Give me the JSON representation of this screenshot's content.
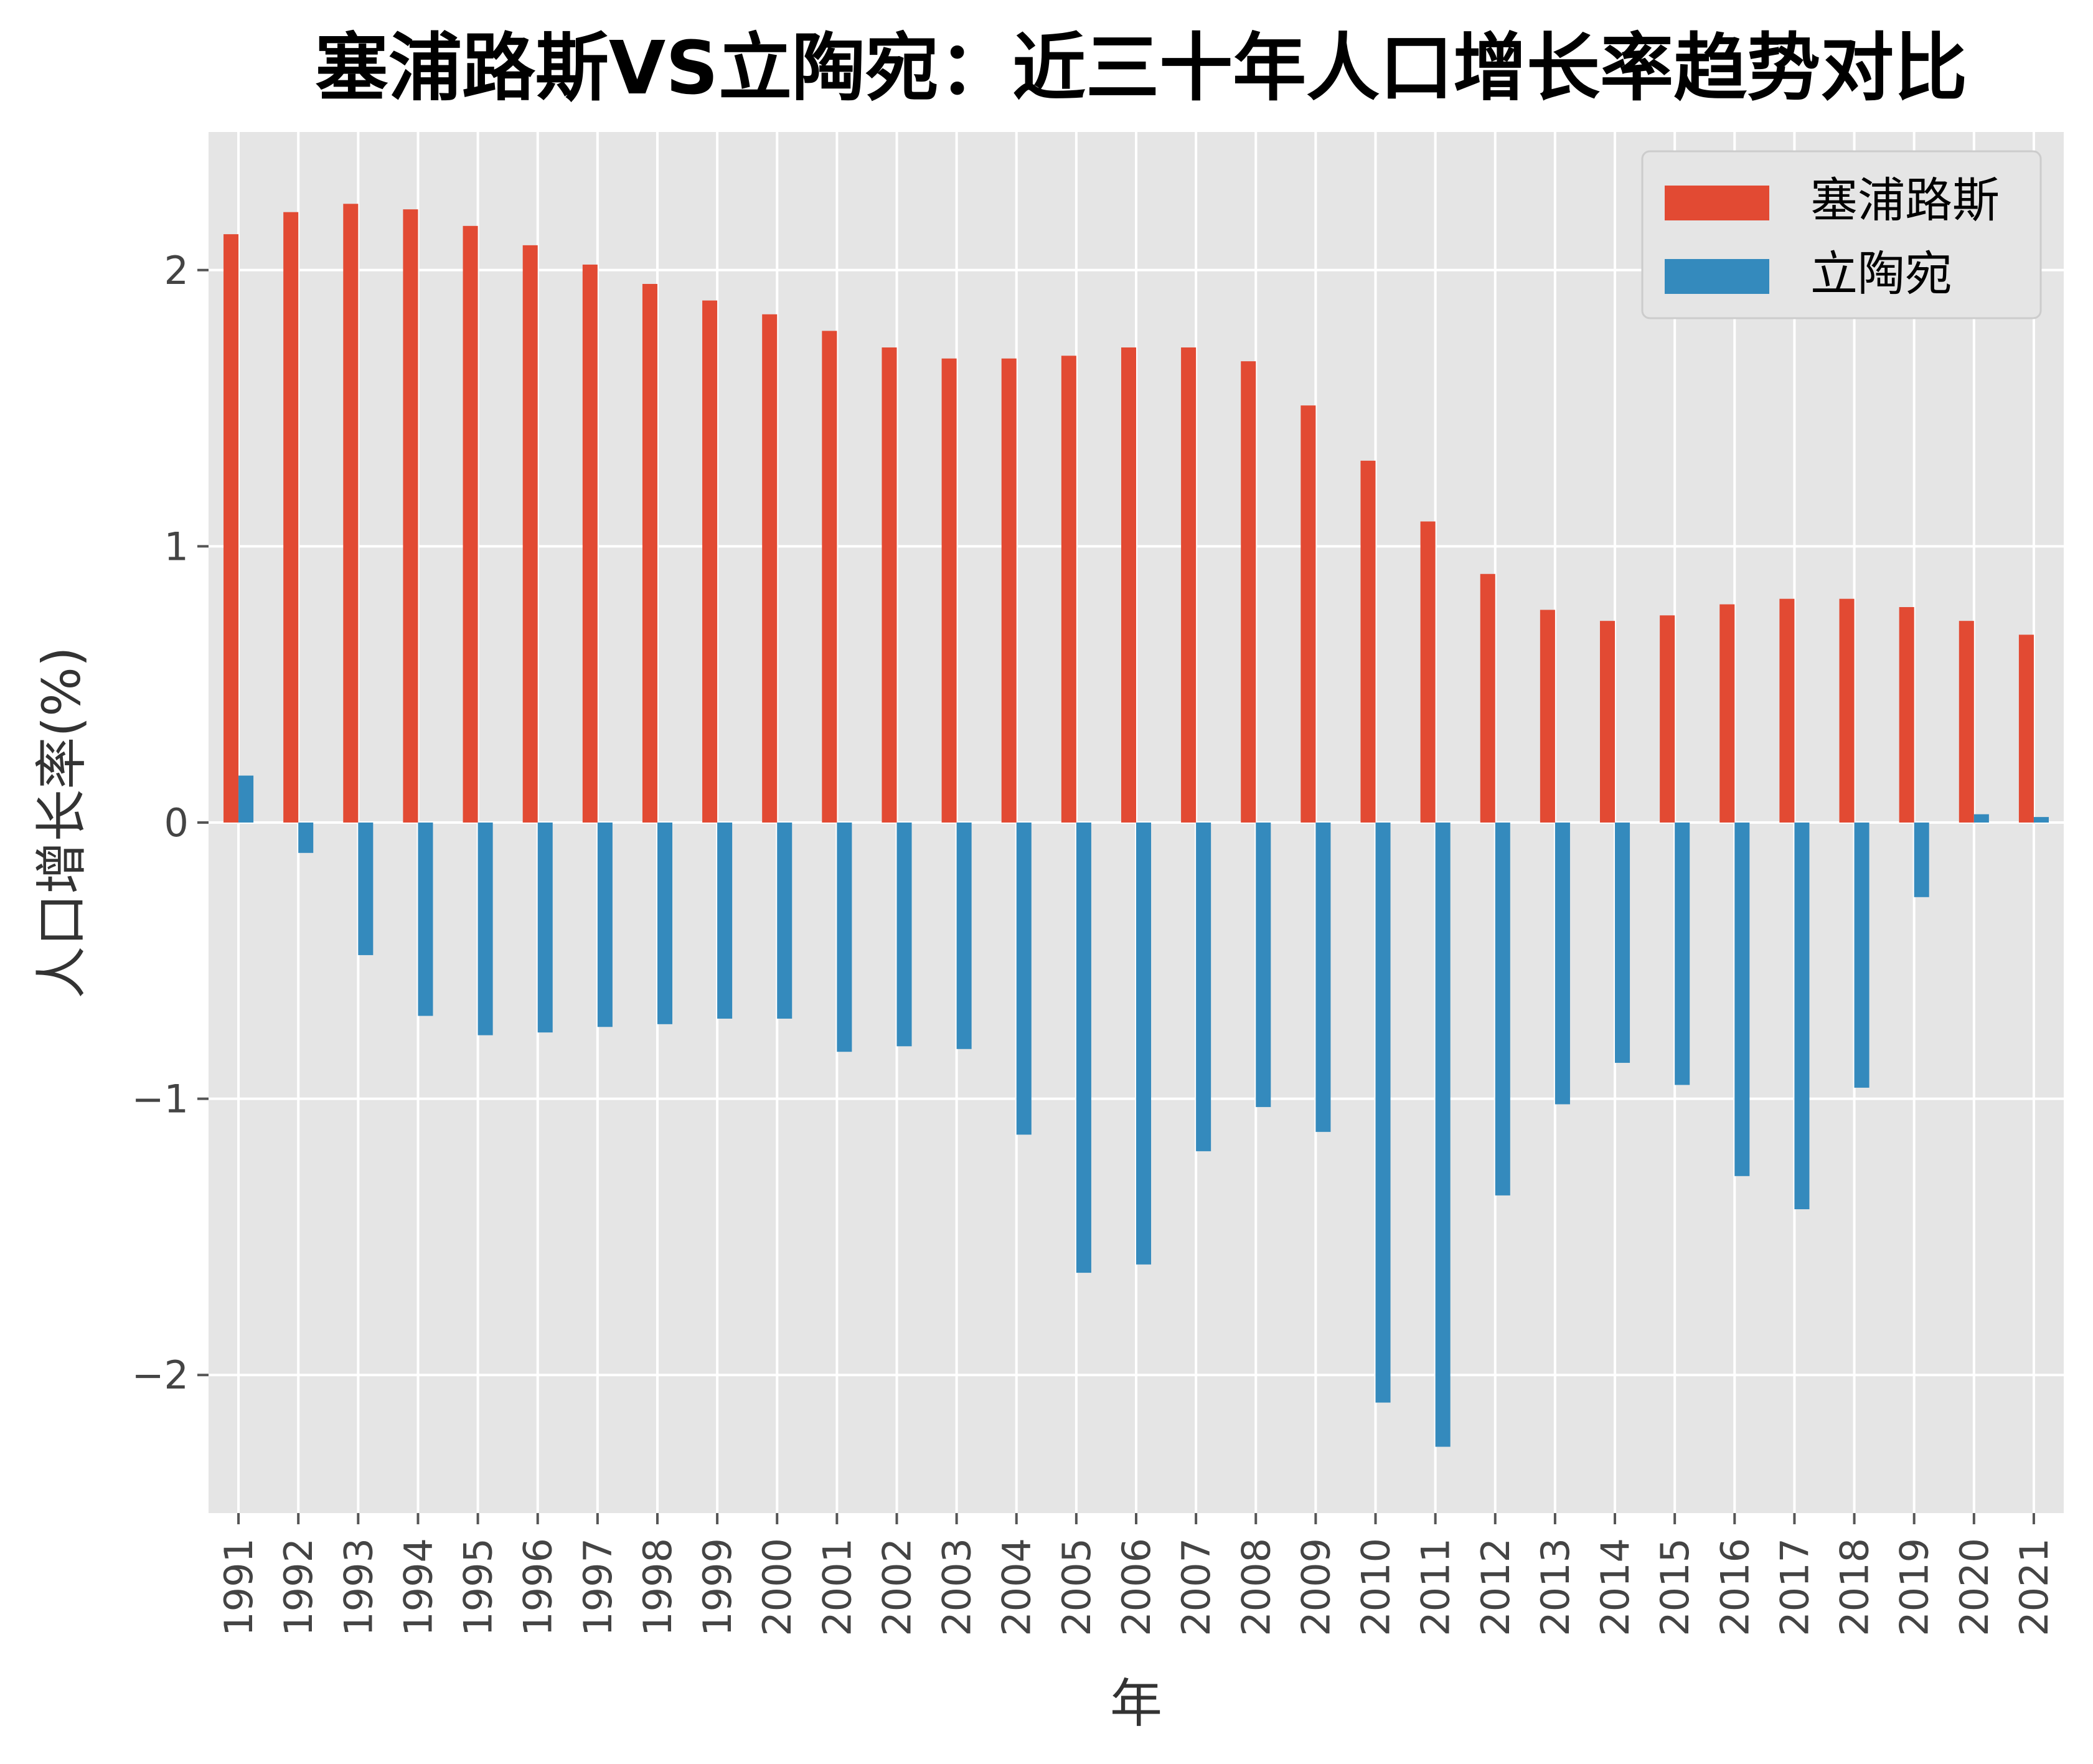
{
  "chart_data": {
    "type": "bar",
    "title": "塞浦路斯VS立陶宛：近三十年人口增长率趋势对比",
    "xlabel": "年",
    "ylabel": "人口增长率(%)",
    "ylim": [
      -2.5,
      2.5
    ],
    "yticks": [
      -2,
      -1,
      0,
      1,
      2
    ],
    "ytick_labels": [
      "−2",
      "−1",
      "0",
      "1",
      "2"
    ],
    "grid": true,
    "legend_position": "top-right",
    "colors": {
      "background": "#E5E5E5",
      "grid": "#FFFFFF",
      "cyprus": "#E24A33",
      "lithuania": "#348ABD"
    },
    "categories": [
      "1991",
      "1992",
      "1993",
      "1994",
      "1995",
      "1996",
      "1997",
      "1998",
      "1999",
      "2000",
      "2001",
      "2002",
      "2003",
      "2004",
      "2005",
      "2006",
      "2007",
      "2008",
      "2009",
      "2010",
      "2011",
      "2012",
      "2013",
      "2014",
      "2015",
      "2016",
      "2017",
      "2018",
      "2019",
      "2020",
      "2021"
    ],
    "series": [
      {
        "name": "塞浦路斯",
        "values": [
          2.13,
          2.21,
          2.24,
          2.22,
          2.16,
          2.09,
          2.02,
          1.95,
          1.89,
          1.84,
          1.78,
          1.72,
          1.68,
          1.68,
          1.69,
          1.72,
          1.72,
          1.67,
          1.51,
          1.31,
          1.09,
          0.9,
          0.77,
          0.73,
          0.75,
          0.79,
          0.81,
          0.81,
          0.78,
          0.73,
          0.68
        ]
      },
      {
        "name": "立陶宛",
        "values": [
          0.17,
          -0.11,
          -0.48,
          -0.7,
          -0.77,
          -0.76,
          -0.74,
          -0.73,
          -0.71,
          -0.71,
          -0.83,
          -0.81,
          -0.82,
          -1.13,
          -1.63,
          -1.6,
          -1.19,
          -1.03,
          -1.12,
          -2.1,
          -2.26,
          -1.35,
          -1.02,
          -0.87,
          -0.95,
          -1.28,
          -1.4,
          -0.96,
          -0.27,
          0.03,
          0.02
        ]
      }
    ]
  }
}
